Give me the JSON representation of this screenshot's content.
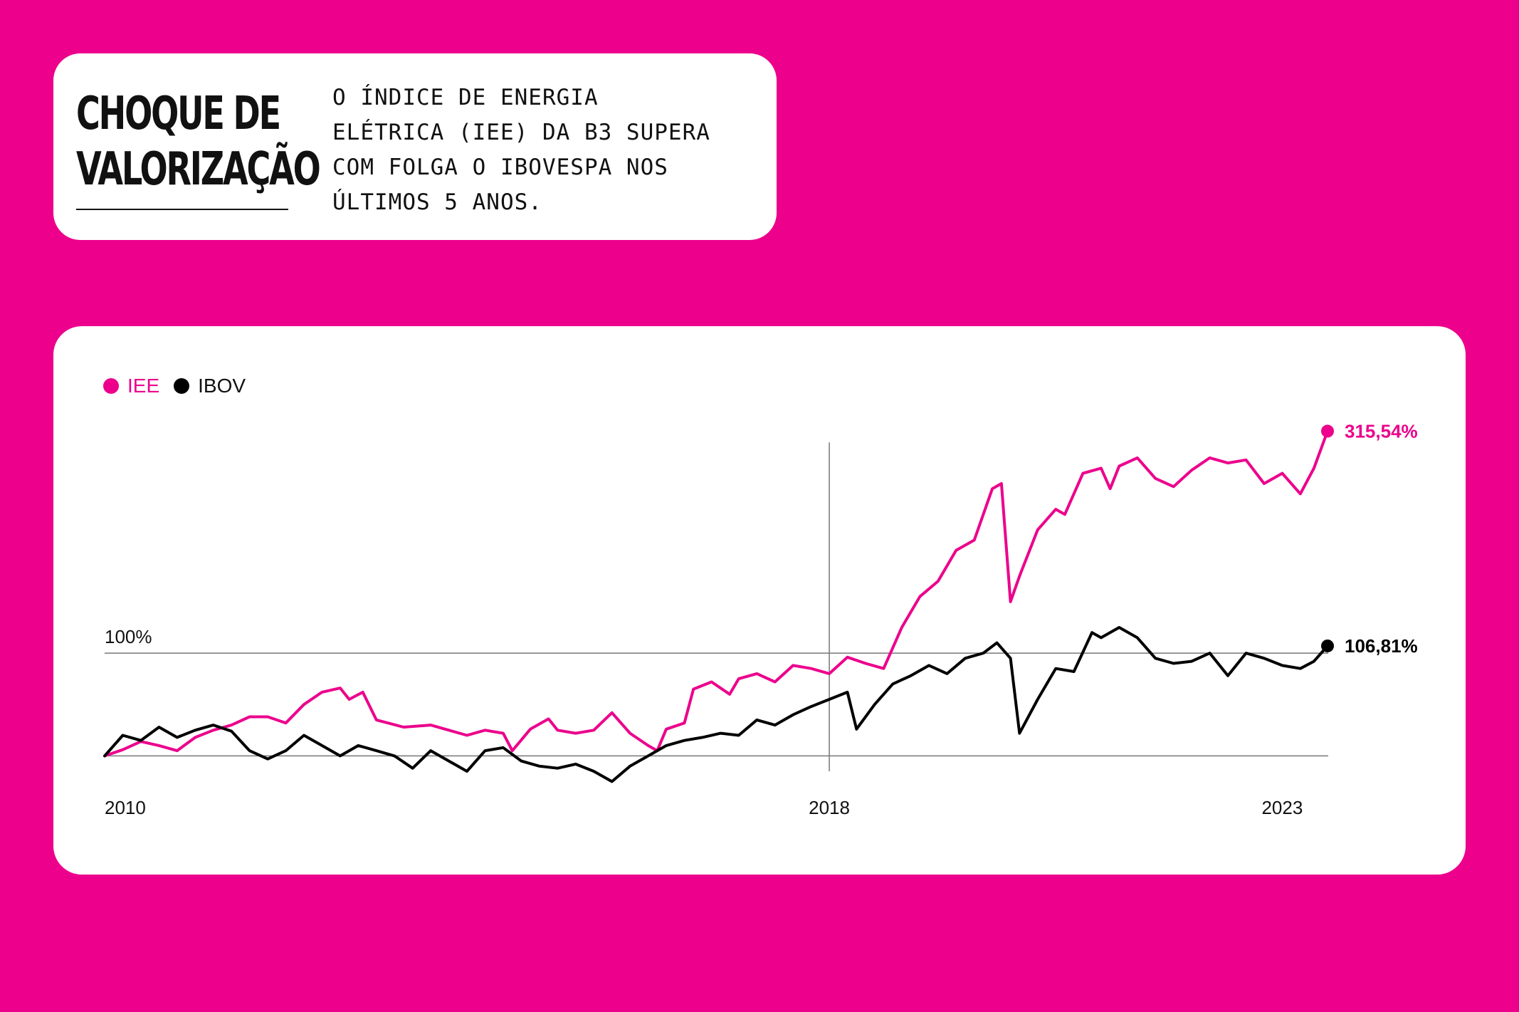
{
  "header": {
    "title_line1": "CHOQUE DE",
    "title_line2": "VALORIZAÇÃO",
    "subtitle_lines": [
      "O ÍNDICE DE ENERGIA",
      "ELÉTRICA (IEE) DA B3 SUPERA",
      "COM FOLGA O IBOVESPA NOS",
      "ÚLTIMOS 5 ANOS."
    ]
  },
  "colors": {
    "background": "#ec008c",
    "iee": "#ec008c",
    "ibov": "#000000"
  },
  "chart_data": {
    "type": "line",
    "title": "",
    "xlabel": "",
    "ylabel": "",
    "x_ticks": [
      "2010",
      "2018",
      "2023"
    ],
    "x_range": [
      2010,
      2023.5
    ],
    "ylim": [
      -0.15,
      3.35
    ],
    "reference_line_label": "100%",
    "reference_line_value": 1.0,
    "baseline_value": 0.0,
    "vertical_marker_year": 2018,
    "legend": [
      "IEE",
      "IBOV"
    ],
    "legend_position": "top-left",
    "series": [
      {
        "name": "IEE",
        "color": "#ec008c",
        "end_label": "315,54%",
        "points": [
          [
            2010.0,
            0.0
          ],
          [
            2010.2,
            0.06
          ],
          [
            2010.4,
            0.14
          ],
          [
            2010.6,
            0.1
          ],
          [
            2010.8,
            0.05
          ],
          [
            2011.0,
            0.18
          ],
          [
            2011.2,
            0.25
          ],
          [
            2011.4,
            0.3
          ],
          [
            2011.6,
            0.38
          ],
          [
            2011.8,
            0.38
          ],
          [
            2012.0,
            0.32
          ],
          [
            2012.2,
            0.5
          ],
          [
            2012.4,
            0.62
          ],
          [
            2012.6,
            0.66
          ],
          [
            2012.7,
            0.55
          ],
          [
            2012.85,
            0.62
          ],
          [
            2013.0,
            0.35
          ],
          [
            2013.3,
            0.28
          ],
          [
            2013.6,
            0.3
          ],
          [
            2013.8,
            0.25
          ],
          [
            2014.0,
            0.2
          ],
          [
            2014.2,
            0.25
          ],
          [
            2014.4,
            0.22
          ],
          [
            2014.5,
            0.05
          ],
          [
            2014.7,
            0.26
          ],
          [
            2014.9,
            0.36
          ],
          [
            2015.0,
            0.25
          ],
          [
            2015.2,
            0.22
          ],
          [
            2015.4,
            0.25
          ],
          [
            2015.6,
            0.42
          ],
          [
            2015.8,
            0.22
          ],
          [
            2016.0,
            0.1
          ],
          [
            2016.1,
            0.05
          ],
          [
            2016.2,
            0.26
          ],
          [
            2016.4,
            0.32
          ],
          [
            2016.5,
            0.65
          ],
          [
            2016.7,
            0.72
          ],
          [
            2016.9,
            0.6
          ],
          [
            2017.0,
            0.75
          ],
          [
            2017.2,
            0.8
          ],
          [
            2017.4,
            0.72
          ],
          [
            2017.6,
            0.88
          ],
          [
            2017.8,
            0.85
          ],
          [
            2018.0,
            0.8
          ],
          [
            2018.2,
            0.96
          ],
          [
            2018.4,
            0.9
          ],
          [
            2018.6,
            0.85
          ],
          [
            2018.8,
            1.25
          ],
          [
            2019.0,
            1.55
          ],
          [
            2019.2,
            1.7
          ],
          [
            2019.4,
            2.0
          ],
          [
            2019.6,
            2.1
          ],
          [
            2019.8,
            2.6
          ],
          [
            2019.9,
            2.65
          ],
          [
            2020.0,
            1.5
          ],
          [
            2020.1,
            1.75
          ],
          [
            2020.3,
            2.2
          ],
          [
            2020.5,
            2.4
          ],
          [
            2020.6,
            2.35
          ],
          [
            2020.8,
            2.75
          ],
          [
            2021.0,
            2.8
          ],
          [
            2021.1,
            2.6
          ],
          [
            2021.2,
            2.82
          ],
          [
            2021.4,
            2.9
          ],
          [
            2021.6,
            2.7
          ],
          [
            2021.8,
            2.62
          ],
          [
            2022.0,
            2.78
          ],
          [
            2022.2,
            2.9
          ],
          [
            2022.4,
            2.85
          ],
          [
            2022.6,
            2.88
          ],
          [
            2022.8,
            2.65
          ],
          [
            2023.0,
            2.75
          ],
          [
            2023.2,
            2.55
          ],
          [
            2023.35,
            2.8
          ],
          [
            2023.5,
            3.16
          ]
        ]
      },
      {
        "name": "IBOV",
        "color": "#000000",
        "end_label": "106,81%",
        "points": [
          [
            2010.0,
            0.0
          ],
          [
            2010.2,
            0.2
          ],
          [
            2010.4,
            0.15
          ],
          [
            2010.6,
            0.28
          ],
          [
            2010.8,
            0.18
          ],
          [
            2011.0,
            0.25
          ],
          [
            2011.2,
            0.3
          ],
          [
            2011.4,
            0.24
          ],
          [
            2011.6,
            0.05
          ],
          [
            2011.8,
            -0.03
          ],
          [
            2012.0,
            0.05
          ],
          [
            2012.2,
            0.2
          ],
          [
            2012.4,
            0.1
          ],
          [
            2012.6,
            0.0
          ],
          [
            2012.8,
            0.1
          ],
          [
            2013.0,
            0.05
          ],
          [
            2013.2,
            0.0
          ],
          [
            2013.4,
            -0.12
          ],
          [
            2013.6,
            0.05
          ],
          [
            2013.8,
            -0.05
          ],
          [
            2014.0,
            -0.15
          ],
          [
            2014.2,
            0.05
          ],
          [
            2014.4,
            0.08
          ],
          [
            2014.6,
            -0.05
          ],
          [
            2014.8,
            -0.1
          ],
          [
            2015.0,
            -0.12
          ],
          [
            2015.2,
            -0.08
          ],
          [
            2015.4,
            -0.15
          ],
          [
            2015.6,
            -0.25
          ],
          [
            2015.8,
            -0.1
          ],
          [
            2016.0,
            0.0
          ],
          [
            2016.2,
            0.1
          ],
          [
            2016.4,
            0.15
          ],
          [
            2016.6,
            0.18
          ],
          [
            2016.8,
            0.22
          ],
          [
            2017.0,
            0.2
          ],
          [
            2017.2,
            0.35
          ],
          [
            2017.4,
            0.3
          ],
          [
            2017.6,
            0.4
          ],
          [
            2017.8,
            0.48
          ],
          [
            2018.0,
            0.55
          ],
          [
            2018.2,
            0.62
          ],
          [
            2018.3,
            0.26
          ],
          [
            2018.5,
            0.5
          ],
          [
            2018.7,
            0.7
          ],
          [
            2018.9,
            0.78
          ],
          [
            2019.1,
            0.88
          ],
          [
            2019.3,
            0.8
          ],
          [
            2019.5,
            0.95
          ],
          [
            2019.7,
            1.0
          ],
          [
            2019.85,
            1.1
          ],
          [
            2020.0,
            0.95
          ],
          [
            2020.1,
            0.22
          ],
          [
            2020.3,
            0.55
          ],
          [
            2020.5,
            0.85
          ],
          [
            2020.7,
            0.82
          ],
          [
            2020.9,
            1.2
          ],
          [
            2021.0,
            1.15
          ],
          [
            2021.2,
            1.25
          ],
          [
            2021.4,
            1.15
          ],
          [
            2021.6,
            0.95
          ],
          [
            2021.8,
            0.9
          ],
          [
            2022.0,
            0.92
          ],
          [
            2022.2,
            1.0
          ],
          [
            2022.4,
            0.78
          ],
          [
            2022.6,
            1.0
          ],
          [
            2022.8,
            0.95
          ],
          [
            2023.0,
            0.88
          ],
          [
            2023.2,
            0.85
          ],
          [
            2023.35,
            0.92
          ],
          [
            2023.5,
            1.07
          ]
        ]
      }
    ]
  }
}
